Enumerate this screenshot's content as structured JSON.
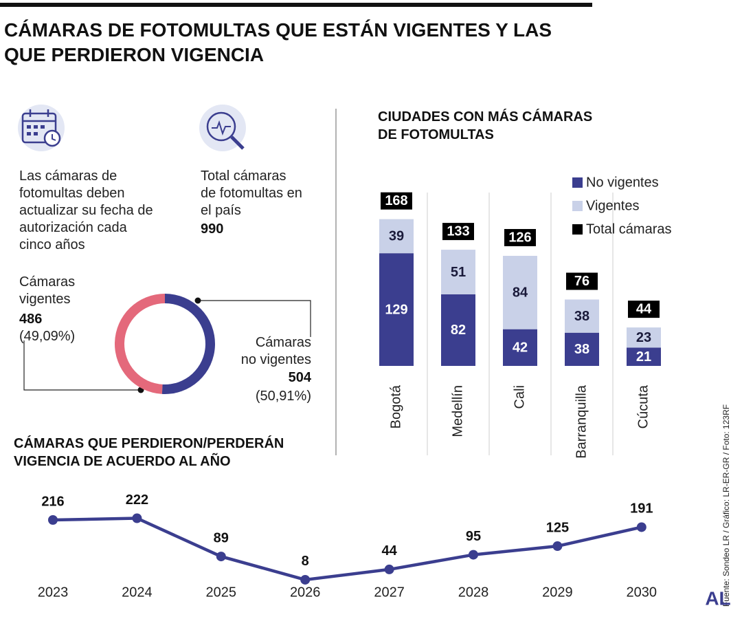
{
  "title": "CÁMARAS DE FOTOMULTAS QUE ESTÁN VIGENTES Y LAS QUE PERDIERON VIGENCIA",
  "info": {
    "note": "Las cámaras de fotomultas deben actualizar su fecha de autorización cada cinco años",
    "total_label": "Total cámaras de fotomultas en el país",
    "total": 990
  },
  "chart_data": [
    {
      "type": "pie",
      "donut": true,
      "categories": [
        "Cámaras vigentes",
        "Cámaras no vigentes"
      ],
      "values": [
        486,
        504
      ],
      "percent_labels": [
        "(49,09%)",
        "(50,91%)"
      ],
      "colors": [
        "#e4697b",
        "#3b3e8f"
      ]
    },
    {
      "type": "bar",
      "stacked": true,
      "title": "CIUDADES CON MÁS CÁMARAS DE FOTOMULTAS",
      "categories": [
        "Bogotá",
        "Medellín",
        "Cali",
        "Barranquilla",
        "Cúcuta"
      ],
      "series": [
        {
          "name": "No vigentes",
          "color": "#3b3e8f",
          "values": [
            129,
            82,
            42,
            38,
            21
          ]
        },
        {
          "name": "Vigentes",
          "color": "#c9d1e8",
          "values": [
            39,
            51,
            84,
            38,
            23
          ]
        }
      ],
      "totals": {
        "name": "Total cámaras",
        "color": "#000000",
        "values": [
          168,
          133,
          126,
          76,
          44
        ]
      }
    },
    {
      "type": "line",
      "title": "CÁMARAS QUE PERDIERON/PERDERÁN VIGENCIA DE ACUERDO AL AÑO",
      "x": [
        2023,
        2024,
        2025,
        2026,
        2027,
        2028,
        2029,
        2030
      ],
      "values": [
        216,
        222,
        89,
        8,
        44,
        95,
        125,
        191
      ],
      "color": "#3b3e8f"
    }
  ],
  "source": "Fuente: Sondeo LR / Gráfico: LR-ER-GR / Foto: 123RF",
  "logo": "AL"
}
